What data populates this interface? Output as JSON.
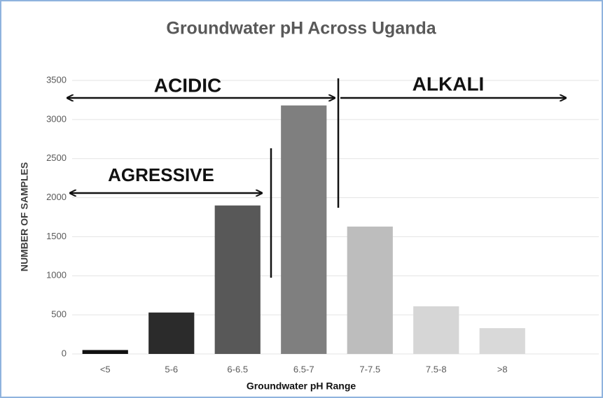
{
  "chart_data": {
    "type": "bar",
    "title": "Groundwater pH Across Uganda",
    "x_label": "Groundwater pH Range",
    "y_label": "NUMBER OF SAMPLES",
    "categories": [
      "<5",
      "5-6",
      "6-6.5",
      "6.5-7",
      "7-7.5",
      "7.5-8",
      ">8"
    ],
    "values": [
      50,
      530,
      1900,
      3180,
      1630,
      610,
      330
    ],
    "colors": [
      "#111111",
      "#2b2b2b",
      "#585858",
      "#7f7f7f",
      "#bdbdbd",
      "#d6d6d6",
      "#d9d9d9"
    ],
    "ylim": [
      0,
      3500
    ],
    "yticks": [
      0,
      500,
      1000,
      1500,
      2000,
      2500,
      3000,
      3500
    ],
    "grid": true,
    "annotations": [
      "ACIDIC",
      "ALKALI",
      "AGRESSIVE"
    ]
  }
}
